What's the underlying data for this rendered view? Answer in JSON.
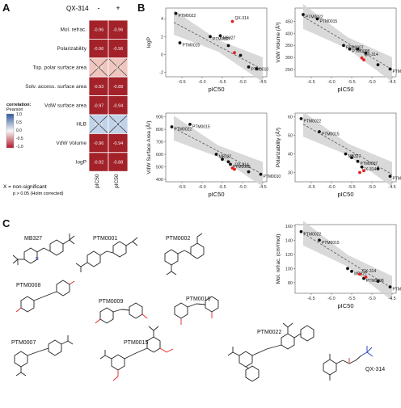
{
  "panel_a": {
    "letter": "A",
    "compound": "QX-314",
    "col_signs": [
      "-",
      "+"
    ],
    "rows": [
      "Mol. refrac.",
      "Polarizability",
      "Top. polar surface area",
      "Solv. access. surface area",
      "VdW surface area",
      "HLB",
      "VdW Volume",
      "logP"
    ],
    "values": [
      [
        "-0.96",
        "-0.96"
      ],
      [
        "-0.96",
        "-0.96"
      ],
      [
        "-0.2",
        "-0.2"
      ],
      [
        "-0.93",
        "-0.88"
      ],
      [
        "-0.97",
        "-0.94"
      ],
      [
        "0.31",
        "0.3"
      ],
      [
        "-0.96",
        "-0.94"
      ],
      [
        "-0.92",
        "-0.88"
      ]
    ],
    "crossed": [
      [
        false,
        false
      ],
      [
        false,
        false
      ],
      [
        true,
        true
      ],
      [
        false,
        false
      ],
      [
        false,
        false
      ],
      [
        true,
        true
      ],
      [
        false,
        false
      ],
      [
        false,
        false
      ]
    ],
    "col_labels": [
      "pIC50",
      "pIC50"
    ],
    "legend_title": [
      "correlation:",
      "Pearson"
    ],
    "legend_ticks": [
      "1.0",
      "0.5",
      "0.0",
      "-0.5",
      "-1.0"
    ],
    "note": "X = non-significant",
    "note_sub": "p > 0.05 (Holm corrected)",
    "colors": {
      "strong_neg": "#a3222a",
      "weak_neg": "#efc6bf",
      "weak_pos": "#c1d3e8",
      "pos": "#2c5a9e",
      "neg": "#b2182b",
      "mid": "#f7f7f7"
    }
  },
  "panel_b": {
    "letter": "B",
    "colors": {
      "black": "#111111",
      "red": "#e4201f",
      "band": "#d2d2d2",
      "trend": "#555555"
    },
    "charts": [
      {
        "ylabel": "logP",
        "xlabel": "pIC50",
        "xlim": [
          -6.9,
          -4.4
        ],
        "ylim": [
          -2.5,
          5.2
        ],
        "xticks": [
          "-6.5",
          "-6.0",
          "-5.5",
          "-5.0",
          "-4.5"
        ],
        "xtick_values": [
          -6.5,
          -6.0,
          -5.5,
          -5.0,
          -4.5
        ],
        "yticks": [
          "4",
          "2",
          "0",
          "-2"
        ],
        "ytick_values": [
          4,
          2,
          0,
          -2
        ],
        "trend": [
          [
            -6.7,
            3.6
          ],
          [
            -4.5,
            -1.7
          ]
        ],
        "points": [
          {
            "x": -6.65,
            "y": 4.6,
            "red": false,
            "label": "PTM0022"
          },
          {
            "x": -5.25,
            "y": 3.7,
            "red": true,
            "label": "QX-314"
          },
          {
            "x": -5.8,
            "y": 2.0,
            "red": false,
            "label": "PTM0007"
          },
          {
            "x": -5.55,
            "y": 2.1,
            "red": false,
            "label": "MB327"
          },
          {
            "x": -6.55,
            "y": 1.3,
            "red": false,
            "label": "PTM0015"
          },
          {
            "x": -5.35,
            "y": 1.0,
            "red": false,
            "label": ""
          },
          {
            "x": -5.2,
            "y": 0.2,
            "red": true,
            "label": ""
          },
          {
            "x": -5.05,
            "y": -0.1,
            "red": false,
            "label": ""
          },
          {
            "x": -4.85,
            "y": -1.4,
            "red": false,
            "label": "PTM0010"
          },
          {
            "x": -4.65,
            "y": -1.6,
            "red": false,
            "label": ""
          }
        ]
      },
      {
        "ylabel": "VdW Volume",
        "ylabel_unit": "Å³",
        "xlabel": "pIC50",
        "xlim": [
          -6.9,
          -4.4
        ],
        "ylim": [
          220,
          505
        ],
        "xticks": [
          "-6.5",
          "-6.0",
          "-5.5",
          "-5.0",
          "-4.5"
        ],
        "xtick_values": [
          -6.5,
          -6.0,
          -5.5,
          -5.0,
          -4.5
        ],
        "yticks": [
          "450",
          "400",
          "350",
          "300",
          "250"
        ],
        "ytick_values": [
          450,
          400,
          350,
          300,
          250
        ],
        "trend": [
          [
            -6.7,
            470
          ],
          [
            -4.5,
            250
          ]
        ],
        "points": [
          {
            "x": -6.7,
            "y": 478,
            "red": false,
            "label": "PTM0022"
          },
          {
            "x": -6.35,
            "y": 460,
            "red": false,
            "label": "PTM0015"
          },
          {
            "x": -5.7,
            "y": 350,
            "red": false,
            "label": "PTM0007"
          },
          {
            "x": -5.55,
            "y": 335,
            "red": false,
            "label": "PTM0008"
          },
          {
            "x": -5.35,
            "y": 335,
            "red": false,
            "label": ""
          },
          {
            "x": -5.15,
            "y": 318,
            "red": false,
            "label": ""
          },
          {
            "x": -5.25,
            "y": 298,
            "red": true,
            "label": "QX-314"
          },
          {
            "x": -5.2,
            "y": 290,
            "red": true,
            "label": ""
          },
          {
            "x": -4.85,
            "y": 270,
            "red": false,
            "label": ""
          },
          {
            "x": -4.55,
            "y": 252,
            "red": false,
            "label": "PTM0010"
          }
        ]
      },
      {
        "ylabel": "VdW Surface Area",
        "ylabel_unit": "Å²",
        "xlabel": "pIC50",
        "xlim": [
          -6.9,
          -4.4
        ],
        "ylim": [
          380,
          930
        ],
        "xticks": [
          "-6.5",
          "-6.0",
          "-5.5",
          "-5.0",
          "-4.5"
        ],
        "xtick_values": [
          -6.5,
          -6.0,
          -5.5,
          -5.0,
          -4.5
        ],
        "yticks": [
          "900",
          "800",
          "700",
          "600",
          "500",
          "400"
        ],
        "ytick_values": [
          900,
          800,
          700,
          600,
          500,
          400
        ],
        "trend": [
          [
            -6.7,
            810
          ],
          [
            -4.5,
            440
          ]
        ],
        "points": [
          {
            "x": -6.75,
            "y": 820,
            "red": false,
            "label": "PTM0022"
          },
          {
            "x": -6.3,
            "y": 840,
            "red": false,
            "label": "PTM0015"
          },
          {
            "x": -5.65,
            "y": 600,
            "red": false,
            "label": "MB327"
          },
          {
            "x": -5.5,
            "y": 560,
            "red": false,
            "label": ""
          },
          {
            "x": -5.35,
            "y": 540,
            "red": false,
            "label": ""
          },
          {
            "x": -5.3,
            "y": 520,
            "red": false,
            "label": "PTM0008"
          },
          {
            "x": -5.25,
            "y": 490,
            "red": true,
            "label": "QX-314"
          },
          {
            "x": -5.2,
            "y": 480,
            "red": true,
            "label": ""
          },
          {
            "x": -4.85,
            "y": 460,
            "red": false,
            "label": ""
          },
          {
            "x": -4.55,
            "y": 440,
            "red": false,
            "label": "PTM0010"
          }
        ]
      },
      {
        "ylabel": "Polarizability",
        "ylabel_unit": "Å³",
        "xlabel": "pIC50",
        "xlim": [
          -6.9,
          -4.4
        ],
        "ylim": [
          25,
          62
        ],
        "xticks": [
          "-6.5",
          "-6.0",
          "-5.5",
          "-5.0",
          "-4.5"
        ],
        "xtick_values": [
          -6.5,
          -6.0,
          -5.5,
          -5.0,
          -4.5
        ],
        "yticks": [
          "60",
          "50",
          "40",
          "30"
        ],
        "ytick_values": [
          60,
          50,
          40,
          30
        ],
        "trend": [
          [
            -6.7,
            56
          ],
          [
            -4.5,
            29
          ]
        ],
        "points": [
          {
            "x": -6.75,
            "y": 59,
            "red": false,
            "label": "PTM0022"
          },
          {
            "x": -6.3,
            "y": 52,
            "red": false,
            "label": "PTM0015"
          },
          {
            "x": -5.65,
            "y": 40,
            "red": false,
            "label": "MB327"
          },
          {
            "x": -5.5,
            "y": 38,
            "red": false,
            "label": ""
          },
          {
            "x": -5.35,
            "y": 36,
            "red": false,
            "label": "PTM0007"
          },
          {
            "x": -5.25,
            "y": 33,
            "red": false,
            "label": ""
          },
          {
            "x": -5.3,
            "y": 30,
            "red": true,
            "label": "QX-314"
          },
          {
            "x": -5.2,
            "y": 31,
            "red": true,
            "label": ""
          },
          {
            "x": -4.85,
            "y": 32,
            "red": false,
            "label": ""
          },
          {
            "x": -4.55,
            "y": 28,
            "red": false,
            "label": "PTM0010"
          }
        ]
      },
      {
        "ylabel": "Mol. refrac.",
        "ylabel_unit": "cm³/mol",
        "xlabel": "pIC50",
        "xlim": [
          -6.9,
          -4.4
        ],
        "ylim": [
          65,
          162
        ],
        "xticks": [
          "-6.5",
          "-6.0",
          "-5.5",
          "-5.0",
          "-4.5"
        ],
        "xtick_values": [
          -6.5,
          -6.0,
          -5.5,
          -5.0,
          -4.5
        ],
        "yticks": [
          "160",
          "140",
          "120",
          "100",
          "80"
        ],
        "ytick_values": [
          160,
          140,
          120,
          100,
          80
        ],
        "trend": [
          [
            -6.7,
            150
          ],
          [
            -4.5,
            72
          ]
        ],
        "points": [
          {
            "x": -6.75,
            "y": 152,
            "red": false,
            "label": "PTM0022"
          },
          {
            "x": -6.3,
            "y": 140,
            "red": false,
            "label": "PTM0015"
          },
          {
            "x": -5.6,
            "y": 100,
            "red": false,
            "label": ""
          },
          {
            "x": -5.5,
            "y": 96,
            "red": false,
            "label": "MB327"
          },
          {
            "x": -5.3,
            "y": 92,
            "red": true,
            "label": "QX-314"
          },
          {
            "x": -5.2,
            "y": 86,
            "red": false,
            "label": "PTM0008"
          },
          {
            "x": -5.15,
            "y": 88,
            "red": true,
            "label": ""
          },
          {
            "x": -4.85,
            "y": 82,
            "red": false,
            "label": ""
          },
          {
            "x": -4.55,
            "y": 74,
            "red": false,
            "label": "PTM0010"
          }
        ]
      }
    ]
  },
  "panel_c": {
    "letter": "C",
    "molecules": [
      "MB327",
      "PTM0001",
      "PTM0002",
      "PTM0008",
      "PTM0009",
      "PTM0010",
      "PTM0007",
      "PTM0015",
      "PTM0022",
      "QX-314"
    ]
  }
}
